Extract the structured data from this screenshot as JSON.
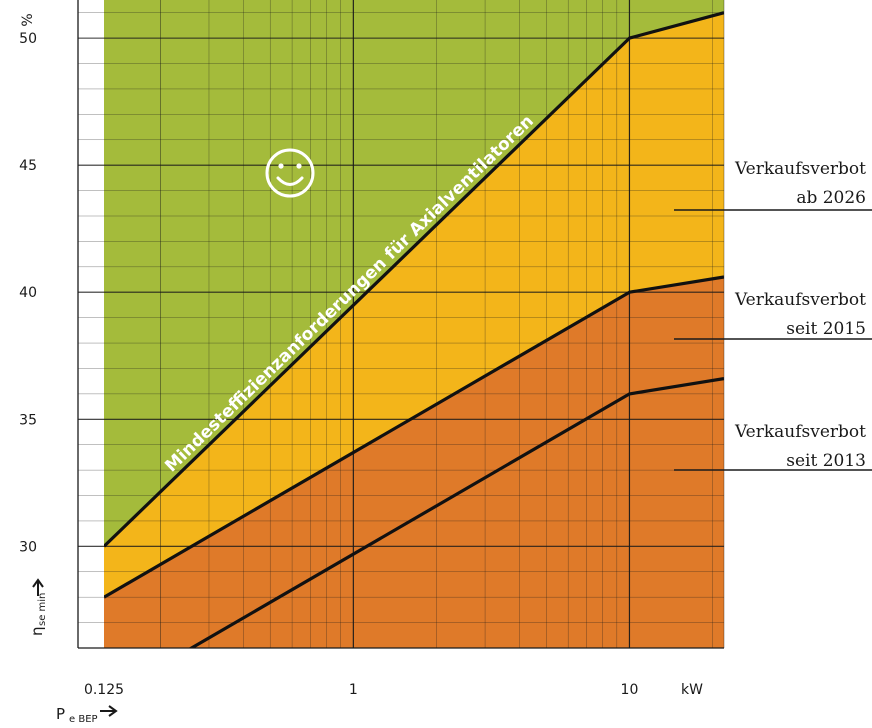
{
  "chart_data": {
    "type": "area",
    "xscale": "log",
    "xlim": [
      0.125,
      22
    ],
    "ylim": [
      26,
      51.5
    ],
    "x_ticks": [
      "0.125",
      "1",
      "10"
    ],
    "x_unit": "kW",
    "y_ticks": [
      "30",
      "35",
      "40",
      "45",
      "50"
    ],
    "y_unit": "%",
    "xlabel": {
      "main": "P",
      "sub": "e BEP"
    },
    "ylabel": {
      "main": "η",
      "sub": "se min"
    },
    "series": [
      {
        "x": [
          0.125,
          10,
          22
        ],
        "y": [
          30,
          50,
          51
        ],
        "annotation": "Mindesteffizienzanforderungen für Axialventilatoren"
      },
      {
        "x": [
          0.125,
          10,
          22
        ],
        "y": [
          28,
          40,
          40.6
        ]
      },
      {
        "x": [
          0.125,
          10,
          22
        ],
        "y": [
          24,
          36,
          36.6
        ]
      }
    ],
    "regions": [
      {
        "color": "#a4bb3b"
      },
      {
        "color": "#f3b51a",
        "label": [
          "Verkaufsverbot",
          "ab 2026"
        ]
      },
      {
        "color": "#df7a29",
        "label": [
          "Verkaufsverbot",
          "seit 2015"
        ]
      }
    ],
    "extra_labels": [
      {
        "label": [
          "Verkaufsverbot",
          "seit 2013"
        ]
      }
    ],
    "smiley": "smiley-icon"
  }
}
